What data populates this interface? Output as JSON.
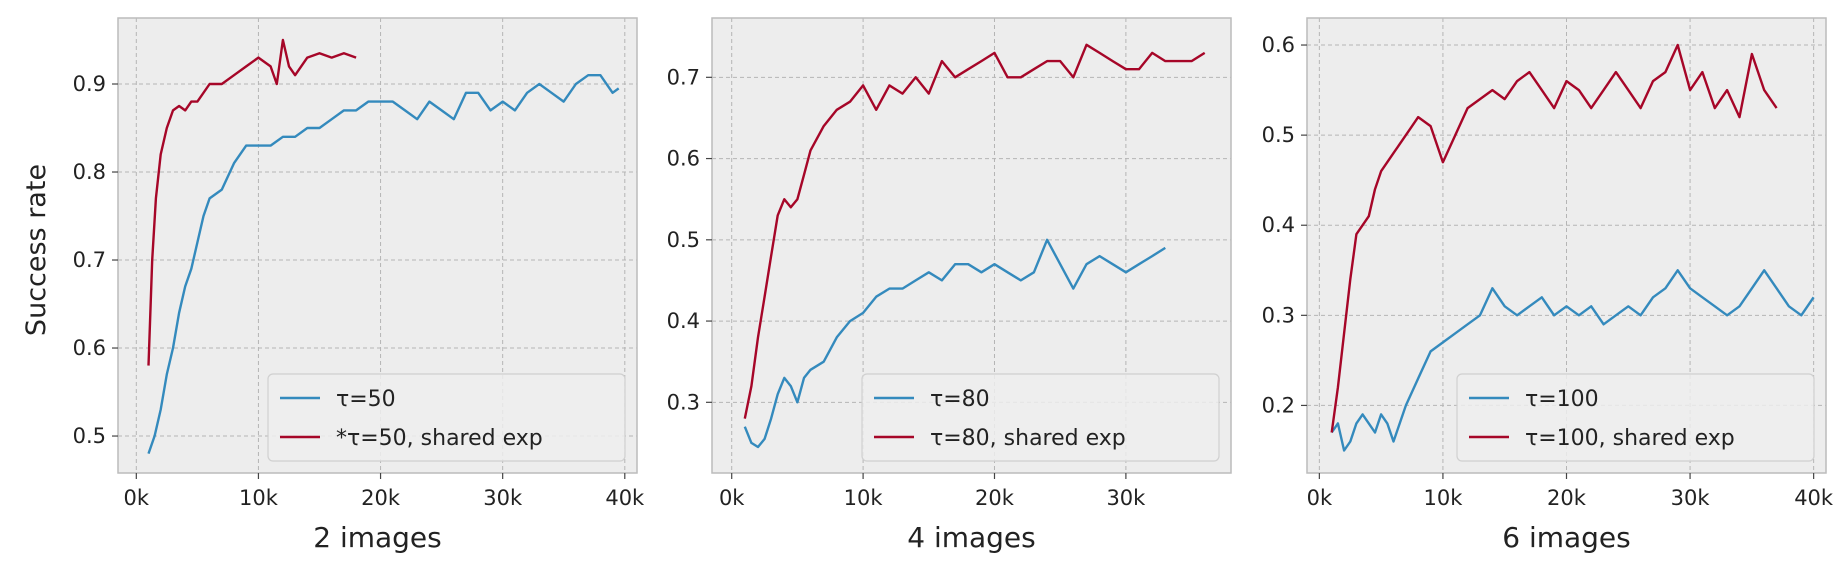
{
  "shared_ylabel": "Success rate",
  "colors": {
    "blue": "#348ABD",
    "red": "#A60628",
    "panel_bg": "#EDEDED",
    "grid": "#B5B5B5",
    "frame": "#BCBCBC"
  },
  "chart_data": [
    {
      "type": "line",
      "xlabel": "2 images",
      "ylabel": "Success rate",
      "xlim": [
        -1500,
        41000
      ],
      "ylim": [
        0.458,
        0.975
      ],
      "xticks": [
        0,
        10000,
        20000,
        30000,
        40000
      ],
      "xtick_labels": [
        "0k",
        "10k",
        "20k",
        "30k",
        "40k"
      ],
      "yticks": [
        0.5,
        0.6,
        0.7,
        0.8,
        0.9
      ],
      "ytick_labels": [
        "0.5",
        "0.6",
        "0.7",
        "0.8",
        "0.9"
      ],
      "grid": true,
      "legend_position": "lower-right",
      "series": [
        {
          "name": "τ=50",
          "color": "#348ABD",
          "x": [
            1000,
            1500,
            2000,
            2500,
            3000,
            3500,
            4000,
            4500,
            5000,
            5500,
            6000,
            7000,
            8000,
            9000,
            10000,
            11000,
            12000,
            13000,
            14000,
            15000,
            16000,
            17000,
            18000,
            19000,
            20000,
            21000,
            22000,
            23000,
            24000,
            25000,
            26000,
            27000,
            28000,
            29000,
            30000,
            31000,
            32000,
            33000,
            34000,
            35000,
            36000,
            37000,
            38000,
            39000,
            39500
          ],
          "y": [
            0.48,
            0.5,
            0.53,
            0.57,
            0.6,
            0.64,
            0.67,
            0.69,
            0.72,
            0.75,
            0.77,
            0.78,
            0.81,
            0.83,
            0.83,
            0.83,
            0.84,
            0.84,
            0.85,
            0.85,
            0.86,
            0.87,
            0.87,
            0.88,
            0.88,
            0.88,
            0.87,
            0.86,
            0.88,
            0.87,
            0.86,
            0.89,
            0.89,
            0.87,
            0.88,
            0.87,
            0.89,
            0.9,
            0.89,
            0.88,
            0.9,
            0.91,
            0.91,
            0.89,
            0.895
          ]
        },
        {
          "name": "*τ=50, shared exp",
          "color": "#A60628",
          "x": [
            1000,
            1300,
            1600,
            2000,
            2500,
            3000,
            3500,
            4000,
            4500,
            5000,
            6000,
            7000,
            8000,
            9000,
            10000,
            11000,
            11500,
            12000,
            12500,
            13000,
            14000,
            15000,
            16000,
            17000,
            18000
          ],
          "y": [
            0.58,
            0.7,
            0.77,
            0.82,
            0.85,
            0.87,
            0.875,
            0.87,
            0.88,
            0.88,
            0.9,
            0.9,
            0.91,
            0.92,
            0.93,
            0.92,
            0.9,
            0.95,
            0.92,
            0.91,
            0.93,
            0.935,
            0.93,
            0.935,
            0.93
          ]
        }
      ]
    },
    {
      "type": "line",
      "xlabel": "4 images",
      "xlim": [
        -1500,
        38000
      ],
      "ylim": [
        0.213,
        0.773
      ],
      "xticks": [
        0,
        10000,
        20000,
        30000
      ],
      "xtick_labels": [
        "0k",
        "10k",
        "20k",
        "30k"
      ],
      "yticks": [
        0.3,
        0.4,
        0.5,
        0.6,
        0.7
      ],
      "ytick_labels": [
        "0.3",
        "0.4",
        "0.5",
        "0.6",
        "0.7"
      ],
      "grid": true,
      "legend_position": "lower-right",
      "series": [
        {
          "name": "τ=80",
          "color": "#348ABD",
          "x": [
            1000,
            1500,
            2000,
            2500,
            3000,
            3500,
            4000,
            4500,
            5000,
            5500,
            6000,
            7000,
            8000,
            9000,
            10000,
            11000,
            12000,
            13000,
            14000,
            15000,
            16000,
            17000,
            18000,
            19000,
            20000,
            21000,
            22000,
            23000,
            24000,
            25000,
            26000,
            27000,
            28000,
            29000,
            30000,
            31000,
            32000,
            33000
          ],
          "y": [
            0.27,
            0.25,
            0.245,
            0.255,
            0.28,
            0.31,
            0.33,
            0.32,
            0.3,
            0.33,
            0.34,
            0.35,
            0.38,
            0.4,
            0.41,
            0.43,
            0.44,
            0.44,
            0.45,
            0.46,
            0.45,
            0.47,
            0.47,
            0.46,
            0.47,
            0.46,
            0.45,
            0.46,
            0.5,
            0.47,
            0.44,
            0.47,
            0.48,
            0.47,
            0.46,
            0.47,
            0.48,
            0.49
          ]
        },
        {
          "name": "τ=80, shared exp",
          "color": "#A60628",
          "x": [
            1000,
            1500,
            2000,
            2500,
            3000,
            3500,
            4000,
            4500,
            5000,
            5500,
            6000,
            7000,
            8000,
            9000,
            10000,
            11000,
            12000,
            13000,
            14000,
            15000,
            16000,
            17000,
            18000,
            19000,
            20000,
            21000,
            22000,
            23000,
            24000,
            25000,
            26000,
            27000,
            28000,
            29000,
            30000,
            31000,
            32000,
            33000,
            34000,
            35000,
            36000
          ],
          "y": [
            0.28,
            0.32,
            0.38,
            0.43,
            0.48,
            0.53,
            0.55,
            0.54,
            0.55,
            0.58,
            0.61,
            0.64,
            0.66,
            0.67,
            0.69,
            0.66,
            0.69,
            0.68,
            0.7,
            0.68,
            0.72,
            0.7,
            0.71,
            0.72,
            0.73,
            0.7,
            0.7,
            0.71,
            0.72,
            0.72,
            0.7,
            0.74,
            0.73,
            0.72,
            0.71,
            0.71,
            0.73,
            0.72,
            0.72,
            0.72,
            0.73
          ]
        }
      ]
    },
    {
      "type": "line",
      "xlabel": "6 images",
      "xlim": [
        -1000,
        41000
      ],
      "ylim": [
        0.125,
        0.63
      ],
      "xticks": [
        0,
        10000,
        20000,
        30000,
        40000
      ],
      "xtick_labels": [
        "0k",
        "10k",
        "20k",
        "30k",
        "40k"
      ],
      "yticks": [
        0.2,
        0.3,
        0.4,
        0.5,
        0.6
      ],
      "ytick_labels": [
        "0.2",
        "0.3",
        "0.4",
        "0.5",
        "0.6"
      ],
      "grid": true,
      "legend_position": "lower-right",
      "series": [
        {
          "name": "τ=100",
          "color": "#348ABD",
          "x": [
            1000,
            1500,
            2000,
            2500,
            3000,
            3500,
            4000,
            4500,
            5000,
            5500,
            6000,
            7000,
            8000,
            9000,
            10000,
            11000,
            12000,
            13000,
            14000,
            15000,
            16000,
            17000,
            18000,
            19000,
            20000,
            21000,
            22000,
            23000,
            24000,
            25000,
            26000,
            27000,
            28000,
            29000,
            30000,
            31000,
            32000,
            33000,
            34000,
            35000,
            36000,
            37000,
            38000,
            39000,
            40000
          ],
          "y": [
            0.17,
            0.18,
            0.15,
            0.16,
            0.18,
            0.19,
            0.18,
            0.17,
            0.19,
            0.18,
            0.16,
            0.2,
            0.23,
            0.26,
            0.27,
            0.28,
            0.29,
            0.3,
            0.33,
            0.31,
            0.3,
            0.31,
            0.32,
            0.3,
            0.31,
            0.3,
            0.31,
            0.29,
            0.3,
            0.31,
            0.3,
            0.32,
            0.33,
            0.35,
            0.33,
            0.32,
            0.31,
            0.3,
            0.31,
            0.33,
            0.35,
            0.33,
            0.31,
            0.3,
            0.32
          ]
        },
        {
          "name": "τ=100, shared exp",
          "color": "#A60628",
          "x": [
            1000,
            1500,
            2000,
            2500,
            3000,
            3500,
            4000,
            4500,
            5000,
            6000,
            7000,
            8000,
            9000,
            10000,
            11000,
            12000,
            13000,
            14000,
            15000,
            16000,
            17000,
            18000,
            19000,
            20000,
            21000,
            22000,
            23000,
            24000,
            25000,
            26000,
            27000,
            28000,
            29000,
            30000,
            31000,
            32000,
            33000,
            34000,
            35000,
            36000,
            37000
          ],
          "y": [
            0.17,
            0.22,
            0.28,
            0.34,
            0.39,
            0.4,
            0.41,
            0.44,
            0.46,
            0.48,
            0.5,
            0.52,
            0.51,
            0.47,
            0.5,
            0.53,
            0.54,
            0.55,
            0.54,
            0.56,
            0.57,
            0.55,
            0.53,
            0.56,
            0.55,
            0.53,
            0.55,
            0.57,
            0.55,
            0.53,
            0.56,
            0.57,
            0.6,
            0.55,
            0.57,
            0.53,
            0.55,
            0.52,
            0.59,
            0.55,
            0.53
          ]
        }
      ]
    }
  ]
}
